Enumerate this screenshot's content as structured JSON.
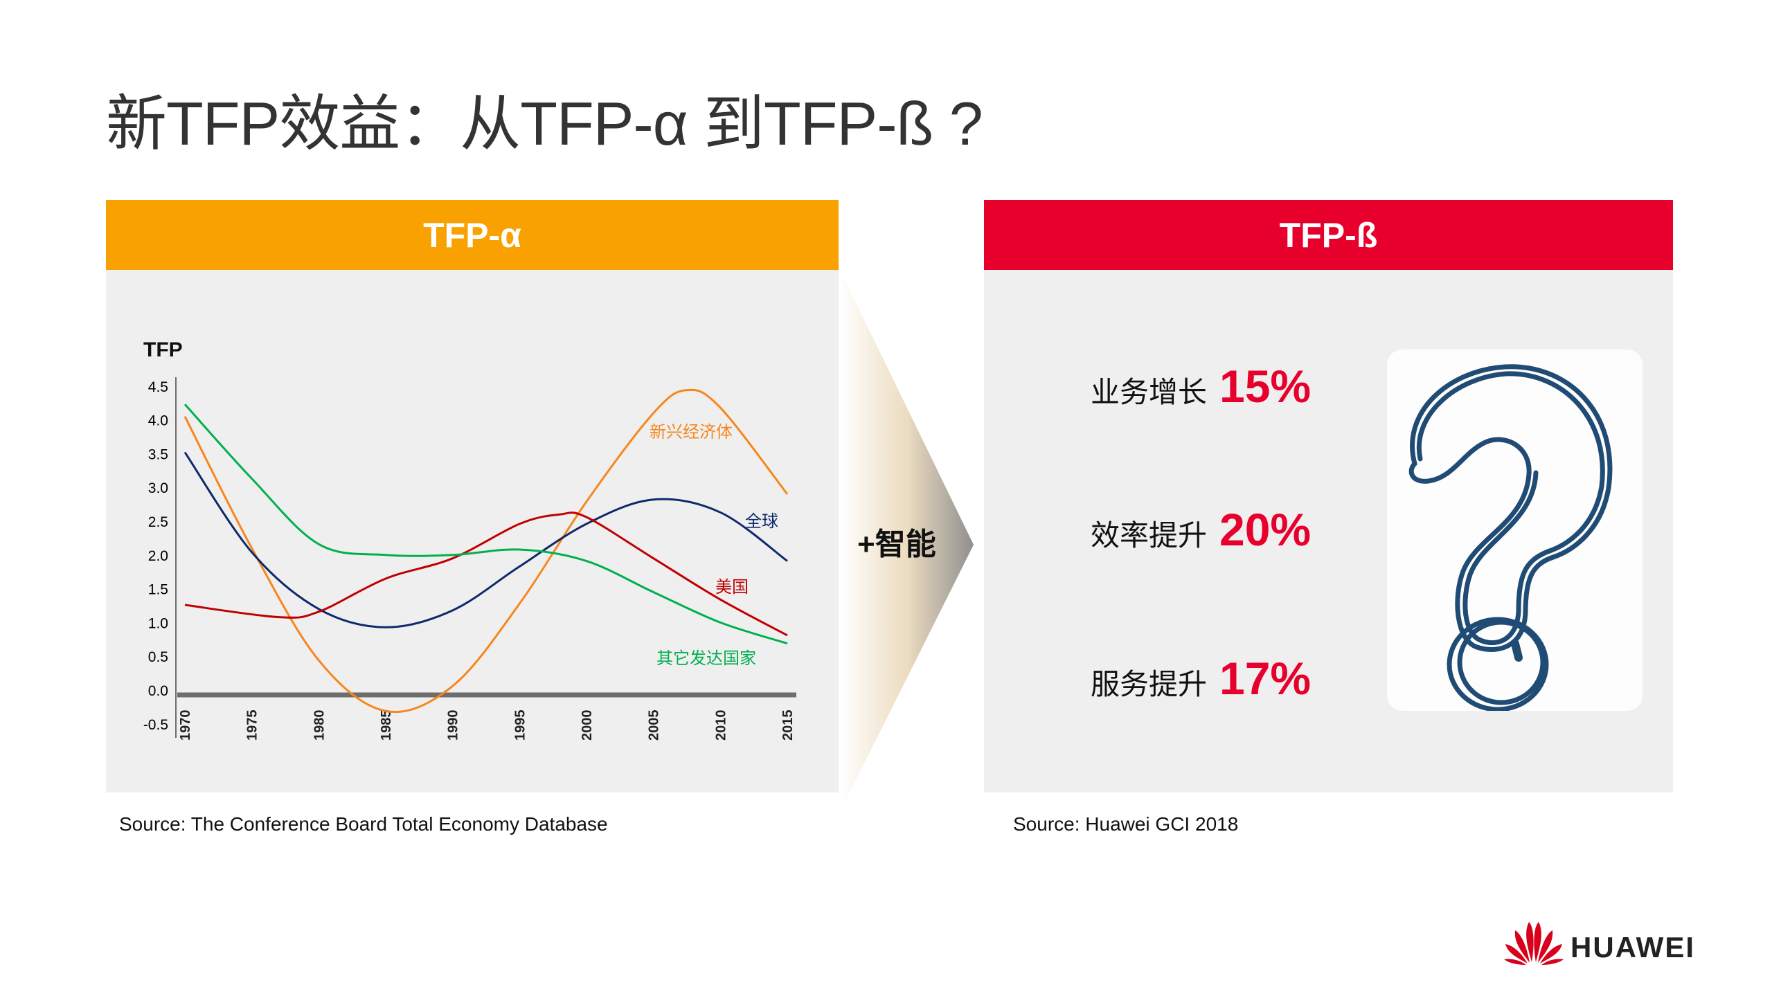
{
  "title": "新TFP效益：从TFP-α 到TFP-ß ?",
  "left_panel": {
    "header": "TFP-α",
    "source": "Source: The Conference Board Total Economy Database"
  },
  "arrow_label": "+智能",
  "right_panel": {
    "header": "TFP-ß",
    "metrics": [
      {
        "label": "业务增长",
        "value": "15%"
      },
      {
        "label": "效率提升",
        "value": "20%"
      },
      {
        "label": "服务提升",
        "value": "17%"
      }
    ],
    "image_icon": "question-mark",
    "source": "Source: Huawei GCI 2018"
  },
  "brand": {
    "name": "HUAWEI",
    "color": "#E8002C"
  },
  "colors": {
    "left_header": "#F9A100",
    "right_header": "#E8002C"
  },
  "chart_data": {
    "type": "line",
    "title": "",
    "ylabel": "TFP",
    "xlabel": "",
    "ylim": [
      -0.5,
      4.5
    ],
    "yticks": [
      "4.5",
      "4.0",
      "3.5",
      "3.0",
      "2.5",
      "2.0",
      "1.5",
      "1.0",
      "0.5",
      "0.0",
      "-0.5"
    ],
    "xticks": [
      "1970",
      "1975",
      "1980",
      "1985",
      "1990",
      "1995",
      "2000",
      "2005",
      "2010",
      "2015"
    ],
    "grid": false,
    "legend": "inline labels",
    "series": [
      {
        "name": "新兴经济体",
        "color": "#F7861C",
        "x": [
          1970,
          1975,
          1980,
          1985,
          1990,
          1995,
          2000,
          2005,
          2007.5,
          2010,
          2015
        ],
        "y": [
          4.05,
          2.1,
          0.44,
          -0.31,
          0.06,
          1.28,
          2.79,
          4.1,
          4.44,
          4.18,
          2.9
        ]
      },
      {
        "name": "全球",
        "color": "#0E2A6B",
        "x": [
          1970,
          1975,
          1980,
          1985,
          1990,
          1995,
          2000,
          2005,
          2010,
          2015
        ],
        "y": [
          3.52,
          2.04,
          1.2,
          0.93,
          1.18,
          1.83,
          2.46,
          2.82,
          2.63,
          1.91
        ]
      },
      {
        "name": "美国",
        "color": "#C00000",
        "x": [
          1970,
          1977,
          1980,
          1985,
          1990,
          1995,
          1998,
          2000,
          2005,
          2010,
          2015
        ],
        "y": [
          1.26,
          1.08,
          1.16,
          1.65,
          1.95,
          2.46,
          2.6,
          2.56,
          1.95,
          1.34,
          0.81
        ]
      },
      {
        "name": "其它发达国家",
        "color": "#00B050",
        "x": [
          1970,
          1975,
          1980,
          1985,
          1990,
          1995,
          2000,
          2005,
          2010,
          2015
        ],
        "y": [
          4.23,
          3.13,
          2.16,
          2.0,
          2.0,
          2.08,
          1.91,
          1.45,
          1.0,
          0.69
        ]
      }
    ]
  }
}
